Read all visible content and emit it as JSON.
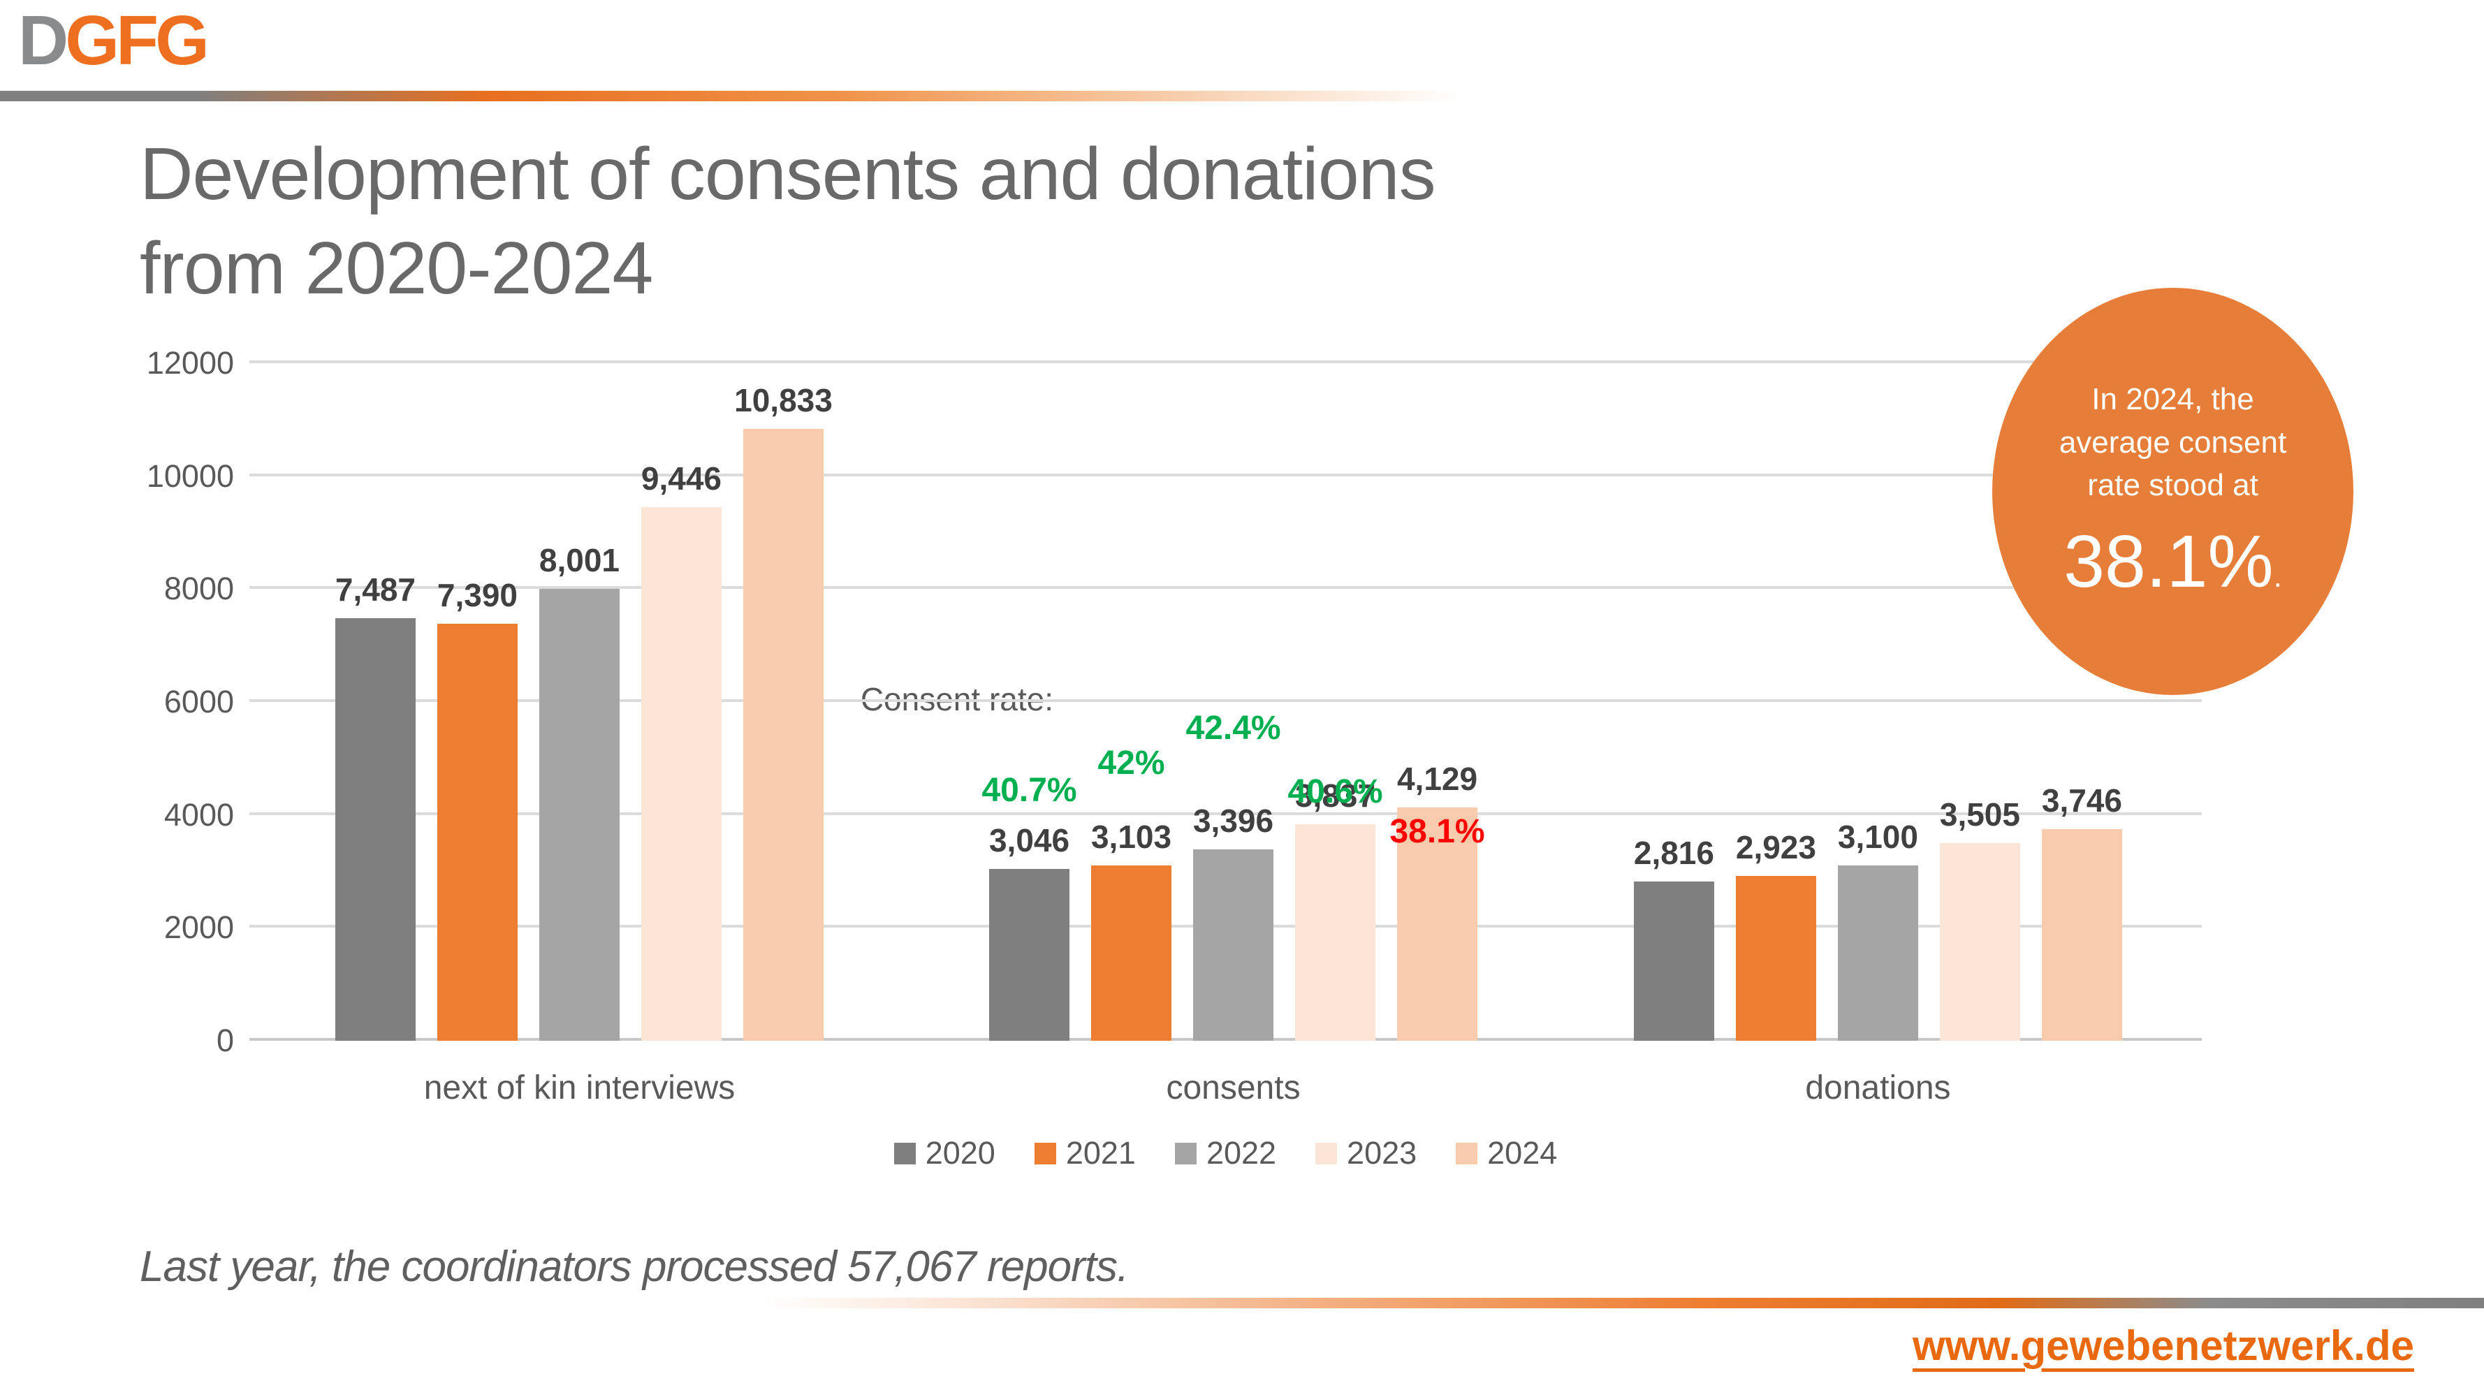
{
  "page": {
    "logo": {
      "d": "D",
      "gfg": "GFG"
    },
    "title_line1": "Development of consents and donations",
    "title_line2": "from 2020-2024",
    "footnote": "Last year, the coordinators processed 57,067 reports.",
    "url": "www.gewebenetzwerk.de"
  },
  "badge": {
    "line1": "In 2024, the",
    "line2": "average consent",
    "line3": "rate stood at",
    "big": "38.1%",
    "period": "."
  },
  "colors": {
    "title_gray": "#696969",
    "axis_gray": "#595959",
    "value_gray": "#404040",
    "gridline": "#dbdbdb",
    "brand_orange": "#ee6f1f",
    "badge_orange": "#e67e39",
    "rate_green": "#00b050",
    "rate_red": "#ff0000"
  },
  "chart_data": {
    "type": "bar",
    "title": "",
    "xlabel": "",
    "ylabel": "",
    "categories": [
      "next of kin interviews",
      "consents",
      "donations"
    ],
    "series": [
      {
        "name": "2020",
        "color": "#7f7f7f",
        "values": [
          7487,
          3046,
          2816
        ]
      },
      {
        "name": "2021",
        "color": "#ed7d31",
        "values": [
          7390,
          3103,
          2923
        ]
      },
      {
        "name": "2022",
        "color": "#a5a5a5",
        "values": [
          8001,
          3396,
          3100
        ]
      },
      {
        "name": "2023",
        "color": "#fbe5d6",
        "values": [
          9446,
          3837,
          3505
        ]
      },
      {
        "name": "2024",
        "color": "#f8cbad",
        "values": [
          10833,
          4129,
          3746
        ]
      }
    ],
    "ylim": [
      0,
      12000
    ],
    "yticks": [
      0,
      2000,
      4000,
      6000,
      8000,
      10000,
      12000
    ],
    "grid": true,
    "legend_position": "bottom",
    "annotations": {
      "header": "Consent rate:",
      "rates_category": "consents",
      "rates": [
        {
          "label": "40.7%",
          "color": "green",
          "y_units": 4100
        },
        {
          "label": "42%",
          "color": "green",
          "y_units": 4580
        },
        {
          "label": "42.4%",
          "color": "green",
          "y_units": 5200
        },
        {
          "label": "40.6%",
          "color": "green",
          "y_units": 4070
        },
        {
          "label": "38.1%",
          "color": "red",
          "y_units": 3370
        }
      ]
    }
  }
}
